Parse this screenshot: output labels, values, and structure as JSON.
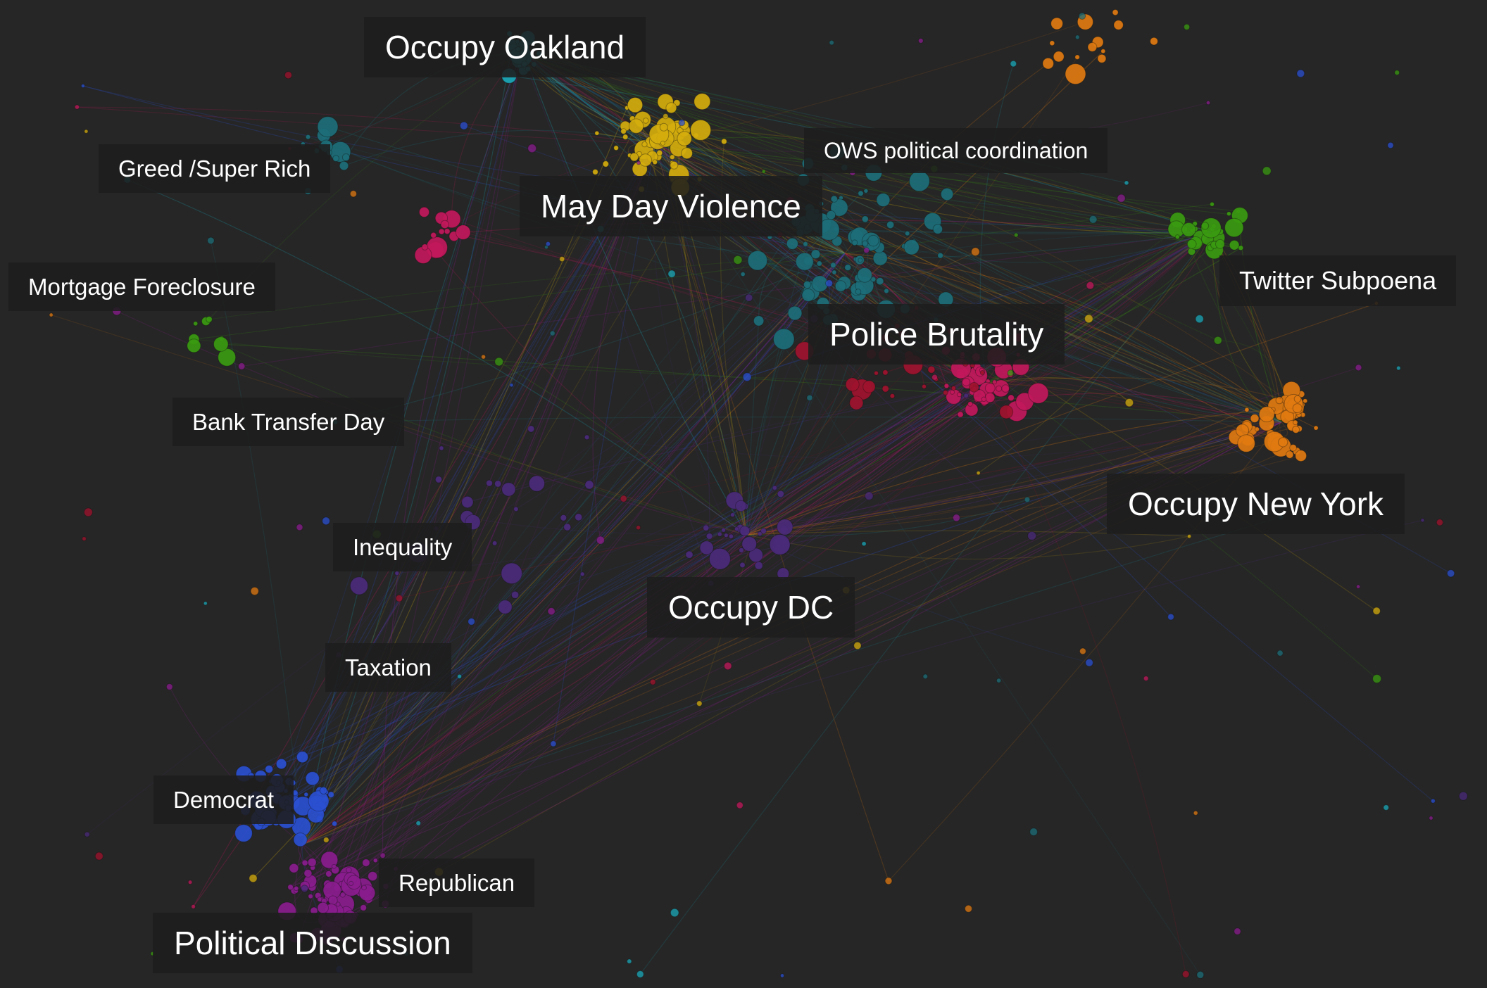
{
  "labels": {
    "occupy_oakland": "Occupy Oakland",
    "greed_super_rich": "Greed /Super Rich",
    "ows_political_coordination": "OWS political coordination",
    "may_day_violence": "May Day Violence",
    "mortgage_foreclosure": "Mortgage Foreclosure",
    "twitter_subpoena": "Twitter Subpoena",
    "police_brutality": "Police Brutality",
    "bank_transfer_day": "Bank Transfer Day",
    "occupy_new_york": "Occupy New York",
    "inequality": "Inequality",
    "occupy_dc": "Occupy DC",
    "taxation": "Taxation",
    "democrat": "Democrat",
    "republican": "Republican",
    "political_discussion": "Political Discussion"
  },
  "colors": {
    "background": "#262626",
    "label_background": "#1e1e1e",
    "label_text": "#ffffff",
    "occupy_oakland": "#1aa8b8",
    "may_day_violence": "#d4ac0d",
    "teal_core": "#1c6e78",
    "police_brutality": "#c2185b",
    "dark_red": "#a0122e",
    "twitter_subpoena": "#3a9a10",
    "occupy_new_york": "#e07a10",
    "occupy_dc": "#4a2a7a",
    "democrat": "#2a4fd0",
    "republican": "#8a1c8e"
  }
}
